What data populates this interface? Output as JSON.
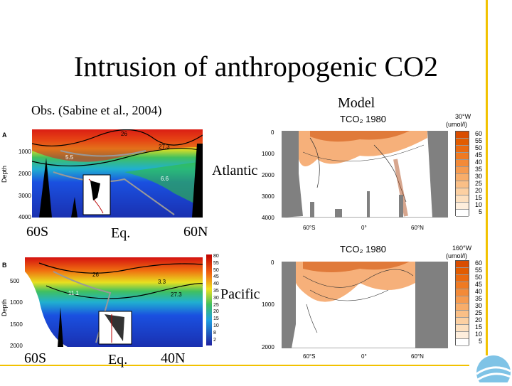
{
  "slide": {
    "title": "Intrusion of anthropogenic CO2",
    "obs_label": "Obs. (Sabine et al., 2004)",
    "model_label": "Model",
    "atlantic_label": "Atlantic",
    "pacific_label": "Pacific"
  },
  "obs_atlantic": {
    "panel_letter": "A",
    "depth_label": "Depth",
    "depth_ticks": [
      "1000",
      "2000",
      "3000",
      "4000"
    ],
    "contour_labels": [
      "26",
      "27.3",
      "5.5",
      "6.6"
    ],
    "lat_labels": [
      "60S",
      "Eq.",
      "60N"
    ]
  },
  "obs_pacific": {
    "panel_letter": "B",
    "depth_label": "Depth",
    "depth_ticks": [
      "500",
      "1000",
      "1500",
      "2000"
    ],
    "contour_labels": [
      "26",
      "3.3",
      "27.3",
      "11.1"
    ],
    "colorbar_ticks": [
      "80",
      "55",
      "50",
      "45",
      "40",
      "35",
      "30",
      "25",
      "20",
      "15",
      "10",
      "8",
      "2"
    ],
    "lat_labels": [
      "60S",
      "Eq.",
      "40N"
    ]
  },
  "model_atlantic": {
    "header": "TCO₂ 1980",
    "lon_label": "30°W",
    "unit": "(umol/l)",
    "depth_ticks": [
      "0",
      "1000",
      "2000",
      "3000",
      "4000"
    ],
    "lat_ticks": [
      "60°S",
      "0°",
      "60°N"
    ],
    "legend": [
      "60",
      "55",
      "50",
      "45",
      "40",
      "35",
      "30",
      "25",
      "20",
      "15",
      "10",
      "5"
    ]
  },
  "model_pacific": {
    "header": "TCO₂ 1980",
    "lon_label": "160°W",
    "unit": "(umol/l)",
    "depth_ticks": [
      "0",
      "1000",
      "2000"
    ],
    "lat_ticks": [
      "60°S",
      "0°",
      "60°N"
    ],
    "legend": [
      "60",
      "55",
      "50",
      "45",
      "40",
      "35",
      "30",
      "25",
      "20",
      "15",
      "10",
      "5"
    ]
  },
  "colors": {
    "frame_line": "#f2c200",
    "legend_scale": [
      "#d94d00",
      "#e25c00",
      "#ea6a10",
      "#ef7a22",
      "#f38a38",
      "#f69b50",
      "#f8ad6a",
      "#fabf86",
      "#fcd0a2",
      "#fde0bf",
      "#feeedc",
      "#ffffff"
    ]
  }
}
